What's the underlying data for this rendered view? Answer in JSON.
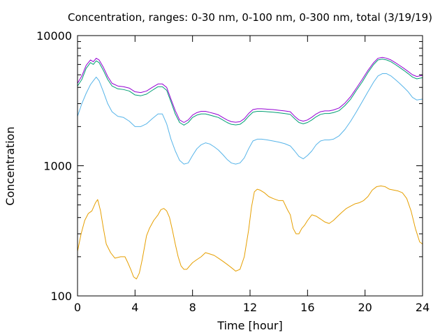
{
  "chart_data": {
    "type": "line",
    "title": "Concentration, ranges: 0-30 nm, 0-100 nm, 0-300 nm, total (3/19/19)",
    "xlabel": "Time [hour]",
    "ylabel": "Concentration",
    "xlim": [
      0,
      24
    ],
    "ylim": [
      100,
      10000
    ],
    "y_scale": "log",
    "x_ticks": [
      0,
      4,
      8,
      12,
      16,
      20,
      24
    ],
    "y_ticks": [
      100,
      1000,
      10000
    ],
    "grid": false,
    "series": [
      {
        "color": "#e69f00",
        "x": [
          0,
          0.25,
          0.5,
          0.75,
          1.0,
          1.25,
          1.4,
          1.6,
          1.8,
          2.0,
          2.3,
          2.6,
          3.0,
          3.3,
          3.5,
          3.7,
          3.9,
          4.1,
          4.3,
          4.5,
          4.8,
          5.0,
          5.3,
          5.6,
          5.8,
          6.0,
          6.2,
          6.4,
          6.6,
          6.8,
          7.0,
          7.2,
          7.4,
          7.6,
          7.8,
          8.0,
          8.3,
          8.6,
          8.9,
          9.2,
          9.5,
          9.8,
          10.1,
          10.4,
          10.7,
          11.0,
          11.3,
          11.6,
          11.9,
          12.1,
          12.3,
          12.5,
          12.7,
          13.0,
          13.3,
          13.6,
          14.0,
          14.3,
          14.6,
          14.8,
          15.0,
          15.2,
          15.4,
          15.6,
          15.8,
          16.0,
          16.3,
          16.6,
          16.9,
          17.2,
          17.5,
          17.8,
          18.1,
          18.4,
          18.7,
          19.0,
          19.3,
          19.6,
          19.9,
          20.2,
          20.5,
          20.8,
          21.1,
          21.4,
          21.7,
          22.0,
          22.3,
          22.6,
          22.9,
          23.2,
          23.5,
          23.8,
          24.0
        ],
        "values": [
          220,
          300,
          380,
          430,
          450,
          520,
          550,
          450,
          330,
          250,
          215,
          195,
          200,
          200,
          180,
          160,
          140,
          135,
          150,
          190,
          290,
          330,
          380,
          420,
          460,
          470,
          450,
          400,
          320,
          250,
          200,
          170,
          160,
          160,
          170,
          180,
          190,
          200,
          215,
          210,
          205,
          195,
          185,
          175,
          165,
          155,
          160,
          200,
          320,
          480,
          630,
          660,
          650,
          620,
          580,
          560,
          540,
          540,
          460,
          420,
          330,
          300,
          300,
          330,
          350,
          380,
          420,
          410,
          390,
          370,
          360,
          380,
          410,
          440,
          470,
          490,
          510,
          520,
          540,
          580,
          650,
          690,
          700,
          690,
          660,
          650,
          640,
          620,
          560,
          450,
          330,
          260,
          250
        ]
      },
      {
        "color": "#56b4e9",
        "x": [
          0,
          0.3,
          0.6,
          0.9,
          1.1,
          1.3,
          1.5,
          1.8,
          2.1,
          2.4,
          2.8,
          3.2,
          3.6,
          4.0,
          4.4,
          4.8,
          5.2,
          5.6,
          5.9,
          6.2,
          6.5,
          6.8,
          7.1,
          7.4,
          7.7,
          8.0,
          8.3,
          8.6,
          8.9,
          9.2,
          9.5,
          9.8,
          10.1,
          10.4,
          10.7,
          11.0,
          11.3,
          11.6,
          11.9,
          12.2,
          12.5,
          12.8,
          13.2,
          13.6,
          14.0,
          14.4,
          14.8,
          15.1,
          15.4,
          15.7,
          16.0,
          16.3,
          16.6,
          16.9,
          17.2,
          17.5,
          17.8,
          18.2,
          18.6,
          19.0,
          19.4,
          19.8,
          20.2,
          20.6,
          20.9,
          21.2,
          21.5,
          21.8,
          22.1,
          22.4,
          22.7,
          23.0,
          23.3,
          23.6,
          24.0
        ],
        "values": [
          2400,
          3000,
          3600,
          4200,
          4500,
          4800,
          4500,
          3700,
          3000,
          2600,
          2400,
          2350,
          2200,
          2000,
          2000,
          2100,
          2300,
          2500,
          2500,
          2100,
          1600,
          1300,
          1100,
          1030,
          1050,
          1200,
          1350,
          1450,
          1500,
          1470,
          1400,
          1320,
          1220,
          1120,
          1050,
          1030,
          1050,
          1150,
          1350,
          1550,
          1600,
          1600,
          1580,
          1550,
          1520,
          1480,
          1420,
          1300,
          1180,
          1130,
          1200,
          1300,
          1450,
          1550,
          1580,
          1580,
          1600,
          1700,
          1900,
          2200,
          2600,
          3100,
          3700,
          4400,
          4900,
          5100,
          5100,
          4900,
          4600,
          4300,
          4000,
          3700,
          3350,
          3200,
          3250
        ]
      },
      {
        "color": "#009e73",
        "x": [
          0,
          0.3,
          0.6,
          0.9,
          1.1,
          1.3,
          1.5,
          1.8,
          2.1,
          2.4,
          2.8,
          3.2,
          3.6,
          4.0,
          4.4,
          4.8,
          5.2,
          5.6,
          5.9,
          6.2,
          6.5,
          6.8,
          7.1,
          7.4,
          7.7,
          8.0,
          8.3,
          8.6,
          8.9,
          9.2,
          9.5,
          9.8,
          10.1,
          10.4,
          10.7,
          11.0,
          11.3,
          11.6,
          11.9,
          12.2,
          12.5,
          12.8,
          13.2,
          13.6,
          14.0,
          14.4,
          14.8,
          15.1,
          15.4,
          15.7,
          16.0,
          16.3,
          16.6,
          16.9,
          17.2,
          17.5,
          17.8,
          18.2,
          18.6,
          19.0,
          19.4,
          19.8,
          20.2,
          20.6,
          20.9,
          21.2,
          21.5,
          21.8,
          22.1,
          22.4,
          22.7,
          23.0,
          23.3,
          23.6,
          24.0
        ],
        "values": [
          4100,
          4600,
          5600,
          6200,
          6000,
          6400,
          6200,
          5400,
          4600,
          4100,
          3900,
          3850,
          3750,
          3500,
          3450,
          3550,
          3800,
          4050,
          4050,
          3800,
          3100,
          2500,
          2150,
          2050,
          2150,
          2350,
          2450,
          2500,
          2500,
          2450,
          2400,
          2350,
          2250,
          2150,
          2080,
          2060,
          2080,
          2200,
          2400,
          2580,
          2620,
          2620,
          2600,
          2580,
          2550,
          2520,
          2480,
          2300,
          2150,
          2100,
          2150,
          2250,
          2380,
          2480,
          2520,
          2520,
          2560,
          2650,
          2900,
          3250,
          3800,
          4400,
          5200,
          6000,
          6500,
          6600,
          6500,
          6300,
          6000,
          5700,
          5400,
          5100,
          4800,
          4650,
          4750
        ]
      },
      {
        "color": "#9400d3",
        "x": [
          0,
          0.3,
          0.6,
          0.9,
          1.1,
          1.3,
          1.5,
          1.8,
          2.1,
          2.4,
          2.8,
          3.2,
          3.6,
          4.0,
          4.4,
          4.8,
          5.2,
          5.6,
          5.9,
          6.2,
          6.5,
          6.8,
          7.1,
          7.4,
          7.7,
          8.0,
          8.3,
          8.6,
          8.9,
          9.2,
          9.5,
          9.8,
          10.1,
          10.4,
          10.7,
          11.0,
          11.3,
          11.6,
          11.9,
          12.2,
          12.5,
          12.8,
          13.2,
          13.6,
          14.0,
          14.4,
          14.8,
          15.1,
          15.4,
          15.7,
          16.0,
          16.3,
          16.6,
          16.9,
          17.2,
          17.5,
          17.8,
          18.2,
          18.6,
          19.0,
          19.4,
          19.8,
          20.2,
          20.6,
          20.9,
          21.2,
          21.5,
          21.8,
          22.1,
          22.4,
          22.7,
          23.0,
          23.3,
          23.6,
          24.0
        ],
        "values": [
          4300,
          4900,
          5900,
          6500,
          6300,
          6700,
          6500,
          5700,
          4850,
          4300,
          4100,
          4050,
          3950,
          3700,
          3650,
          3750,
          4000,
          4250,
          4250,
          4000,
          3250,
          2650,
          2250,
          2150,
          2250,
          2450,
          2560,
          2620,
          2620,
          2570,
          2520,
          2460,
          2350,
          2250,
          2180,
          2160,
          2180,
          2300,
          2520,
          2700,
          2740,
          2740,
          2720,
          2700,
          2670,
          2640,
          2600,
          2400,
          2250,
          2200,
          2250,
          2360,
          2500,
          2600,
          2640,
          2640,
          2680,
          2780,
          3030,
          3400,
          3950,
          4600,
          5400,
          6200,
          6700,
          6800,
          6700,
          6500,
          6200,
          5900,
          5600,
          5300,
          5000,
          4850,
          4950
        ]
      }
    ]
  }
}
